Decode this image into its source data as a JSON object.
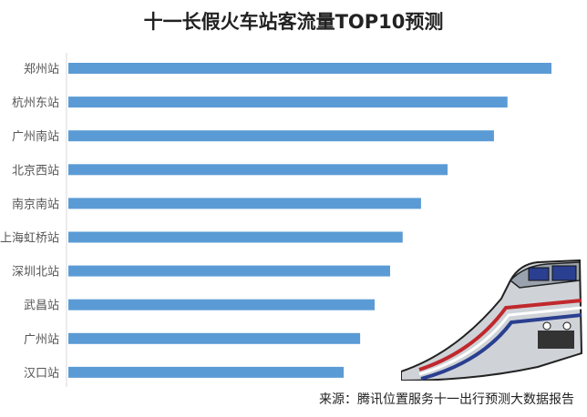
{
  "chart_data": {
    "type": "bar",
    "orientation": "horizontal",
    "title": "十一长假火车站客流量TOP10预测",
    "categories": [
      "郑州站",
      "杭州东站",
      "广州南站",
      "北京西站",
      "南京南站",
      "上海虹桥站",
      "深圳北站",
      "武昌站",
      "广州站",
      "汉口站"
    ],
    "values": [
      100,
      90.9,
      88.1,
      78.5,
      73.0,
      69.2,
      66.6,
      63.4,
      60.4,
      57.0
    ],
    "value_note_axis_shown": false,
    "xlim": [
      0,
      100
    ],
    "grid": false,
    "legend": "none",
    "bar_color": "#5b9bd5"
  },
  "source": "来源：腾讯位置服务十一出行预测大数据报告",
  "illustration": "train-icon"
}
